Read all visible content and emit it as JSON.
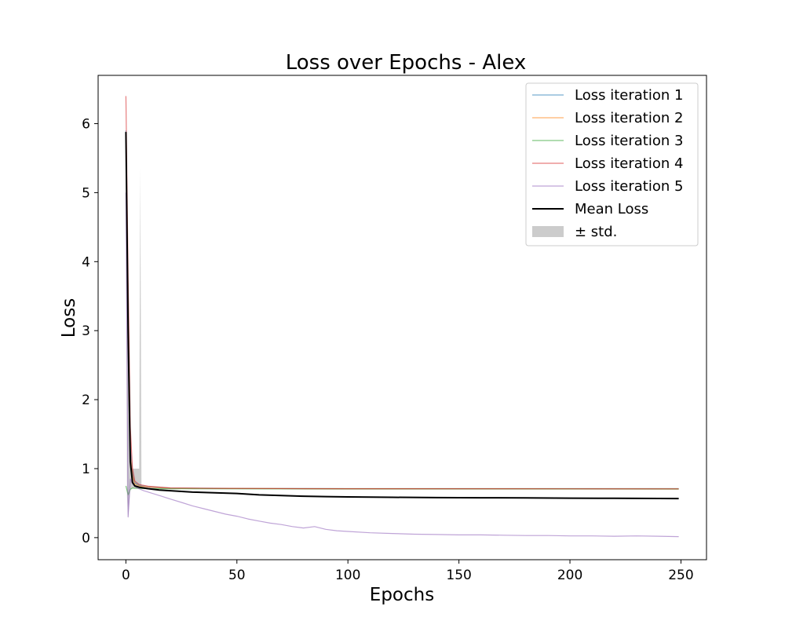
{
  "chart_data": {
    "type": "line",
    "title": "Loss over Epochs - Alex",
    "xlabel": "Epochs",
    "ylabel": "Loss",
    "xlim": [
      -12.5,
      261.5
    ],
    "ylim": [
      -0.32,
      6.7
    ],
    "xticks": [
      0,
      50,
      100,
      150,
      200,
      250
    ],
    "yticks": [
      0,
      1,
      2,
      3,
      4,
      5,
      6
    ],
    "grid": false,
    "legend_position": "top-right",
    "series": [
      {
        "name": "Loss iteration 1",
        "color": "#1f77b4",
        "points": [
          [
            0,
            5.9
          ],
          [
            1,
            3.2
          ],
          [
            2,
            1.3
          ],
          [
            3,
            0.95
          ],
          [
            4,
            0.8
          ],
          [
            6,
            0.76
          ],
          [
            10,
            0.74
          ],
          [
            20,
            0.72
          ],
          [
            40,
            0.715
          ],
          [
            60,
            0.712
          ],
          [
            80,
            0.71
          ],
          [
            100,
            0.708
          ],
          [
            120,
            0.708
          ],
          [
            150,
            0.708
          ],
          [
            175,
            0.707
          ],
          [
            200,
            0.707
          ],
          [
            225,
            0.706
          ],
          [
            249,
            0.706
          ]
        ]
      },
      {
        "name": "Loss iteration 2",
        "color": "#ff7f0e",
        "points": [
          [
            0,
            5.8
          ],
          [
            1,
            3.0
          ],
          [
            2,
            1.2
          ],
          [
            3,
            0.9
          ],
          [
            4,
            0.78
          ],
          [
            6,
            0.75
          ],
          [
            10,
            0.735
          ],
          [
            20,
            0.718
          ],
          [
            40,
            0.713
          ],
          [
            60,
            0.711
          ],
          [
            80,
            0.709
          ],
          [
            100,
            0.708
          ],
          [
            120,
            0.708
          ],
          [
            150,
            0.707
          ],
          [
            175,
            0.707
          ],
          [
            200,
            0.706
          ],
          [
            225,
            0.706
          ],
          [
            249,
            0.705
          ]
        ]
      },
      {
        "name": "Loss iteration 3",
        "color": "#2ca02c",
        "points": [
          [
            0,
            0.75
          ],
          [
            1,
            0.62
          ],
          [
            2,
            0.7
          ],
          [
            3,
            0.72
          ],
          [
            4,
            0.715
          ],
          [
            6,
            0.712
          ],
          [
            10,
            0.71
          ],
          [
            20,
            0.708
          ],
          [
            40,
            0.707
          ],
          [
            60,
            0.706
          ],
          [
            80,
            0.706
          ],
          [
            100,
            0.705
          ],
          [
            150,
            0.705
          ],
          [
            200,
            0.705
          ],
          [
            249,
            0.704
          ]
        ]
      },
      {
        "name": "Loss iteration 4",
        "color": "#d62728",
        "points": [
          [
            0,
            6.4
          ],
          [
            1,
            3.8
          ],
          [
            2,
            1.6
          ],
          [
            3,
            1.0
          ],
          [
            4,
            0.82
          ],
          [
            6,
            0.77
          ],
          [
            10,
            0.745
          ],
          [
            20,
            0.72
          ],
          [
            40,
            0.714
          ],
          [
            60,
            0.712
          ],
          [
            80,
            0.71
          ],
          [
            100,
            0.709
          ],
          [
            150,
            0.708
          ],
          [
            200,
            0.707
          ],
          [
            249,
            0.706
          ]
        ]
      },
      {
        "name": "Loss iteration 5",
        "color": "#9467bd",
        "points": [
          [
            0,
            5.0
          ],
          [
            1,
            0.3
          ],
          [
            2,
            0.85
          ],
          [
            3,
            0.78
          ],
          [
            5,
            0.72
          ],
          [
            8,
            0.68
          ],
          [
            12,
            0.64
          ],
          [
            16,
            0.6
          ],
          [
            20,
            0.56
          ],
          [
            25,
            0.51
          ],
          [
            30,
            0.46
          ],
          [
            35,
            0.42
          ],
          [
            40,
            0.38
          ],
          [
            45,
            0.34
          ],
          [
            50,
            0.31
          ],
          [
            55,
            0.27
          ],
          [
            60,
            0.24
          ],
          [
            65,
            0.21
          ],
          [
            70,
            0.19
          ],
          [
            75,
            0.16
          ],
          [
            80,
            0.14
          ],
          [
            85,
            0.16
          ],
          [
            90,
            0.12
          ],
          [
            95,
            0.1
          ],
          [
            100,
            0.09
          ],
          [
            110,
            0.07
          ],
          [
            120,
            0.06
          ],
          [
            130,
            0.05
          ],
          [
            140,
            0.045
          ],
          [
            150,
            0.04
          ],
          [
            160,
            0.04
          ],
          [
            170,
            0.035
          ],
          [
            180,
            0.03
          ],
          [
            190,
            0.03
          ],
          [
            200,
            0.025
          ],
          [
            210,
            0.025
          ],
          [
            220,
            0.02
          ],
          [
            230,
            0.025
          ],
          [
            240,
            0.02
          ],
          [
            249,
            0.015
          ]
        ]
      },
      {
        "name": "Mean Loss",
        "color": "#000000",
        "points": [
          [
            0,
            5.88
          ],
          [
            1,
            3.0
          ],
          [
            2,
            1.1
          ],
          [
            3,
            0.8
          ],
          [
            4,
            0.75
          ],
          [
            6,
            0.73
          ],
          [
            10,
            0.71
          ],
          [
            15,
            0.69
          ],
          [
            20,
            0.68
          ],
          [
            30,
            0.66
          ],
          [
            40,
            0.65
          ],
          [
            50,
            0.64
          ],
          [
            60,
            0.62
          ],
          [
            70,
            0.61
          ],
          [
            80,
            0.6
          ],
          [
            90,
            0.595
          ],
          [
            100,
            0.59
          ],
          [
            120,
            0.585
          ],
          [
            140,
            0.58
          ],
          [
            160,
            0.578
          ],
          [
            180,
            0.575
          ],
          [
            200,
            0.572
          ],
          [
            220,
            0.57
          ],
          [
            240,
            0.568
          ],
          [
            249,
            0.566
          ]
        ]
      }
    ],
    "std_band": {
      "name": "± std.",
      "color": "#999999",
      "upper": [
        [
          0,
          5.9
        ],
        [
          1,
          4.0
        ],
        [
          2,
          2.0
        ],
        [
          2.5,
          1.0
        ],
        [
          6,
          1.0
        ],
        [
          6.5,
          5.35
        ],
        [
          7,
          0.74
        ],
        [
          10,
          0.73
        ],
        [
          20,
          0.72
        ],
        [
          249,
          0.72
        ]
      ],
      "lower": [
        [
          249,
          0.71
        ],
        [
          20,
          0.71
        ],
        [
          10,
          0.71
        ],
        [
          7,
          0.72
        ],
        [
          6,
          0.72
        ],
        [
          3,
          0.72
        ],
        [
          2,
          0.7
        ],
        [
          1.2,
          0.35
        ],
        [
          1,
          0.28
        ],
        [
          0.5,
          0.6
        ],
        [
          0,
          5.8
        ]
      ]
    }
  }
}
